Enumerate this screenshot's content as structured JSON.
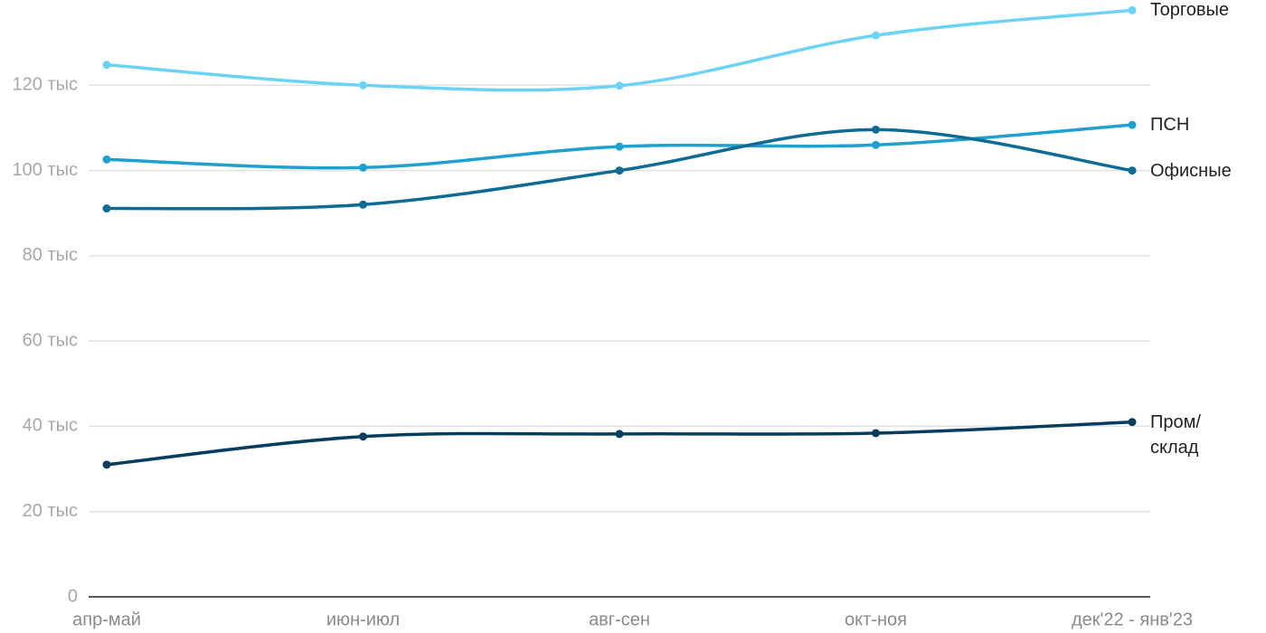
{
  "chart_data": {
    "type": "line",
    "categories": [
      "апр-май",
      "июн-июл",
      "авг-сен",
      "окт-ноя",
      "дек'22 - янв'23"
    ],
    "series": [
      {
        "name": "Торговые",
        "color": "#6dd3f5",
        "values": [
          124800,
          120000,
          119900,
          131700,
          137600
        ]
      },
      {
        "name": "ПСН",
        "color": "#1fa0cf",
        "values": [
          102600,
          100700,
          105600,
          106000,
          110700
        ]
      },
      {
        "name": "Офисные",
        "color": "#0e6b93",
        "values": [
          91100,
          92000,
          100000,
          109600,
          100000
        ]
      },
      {
        "name": "Пром/склад",
        "color": "#053d5e",
        "values": [
          31000,
          37600,
          38200,
          38400,
          41000
        ]
      }
    ],
    "ylim": [
      0,
      140000
    ],
    "yticks": [
      0,
      {
        "value": 20000,
        "label": "20 тыс"
      },
      {
        "value": 40000,
        "label": "40 тыс"
      },
      {
        "value": 60000,
        "label": "60 тыс"
      },
      {
        "value": 80000,
        "label": "80 тыс"
      },
      {
        "value": 100000,
        "label": "100 тыс"
      },
      {
        "value": 120000,
        "label": "120 тыс"
      }
    ],
    "grid": true
  }
}
